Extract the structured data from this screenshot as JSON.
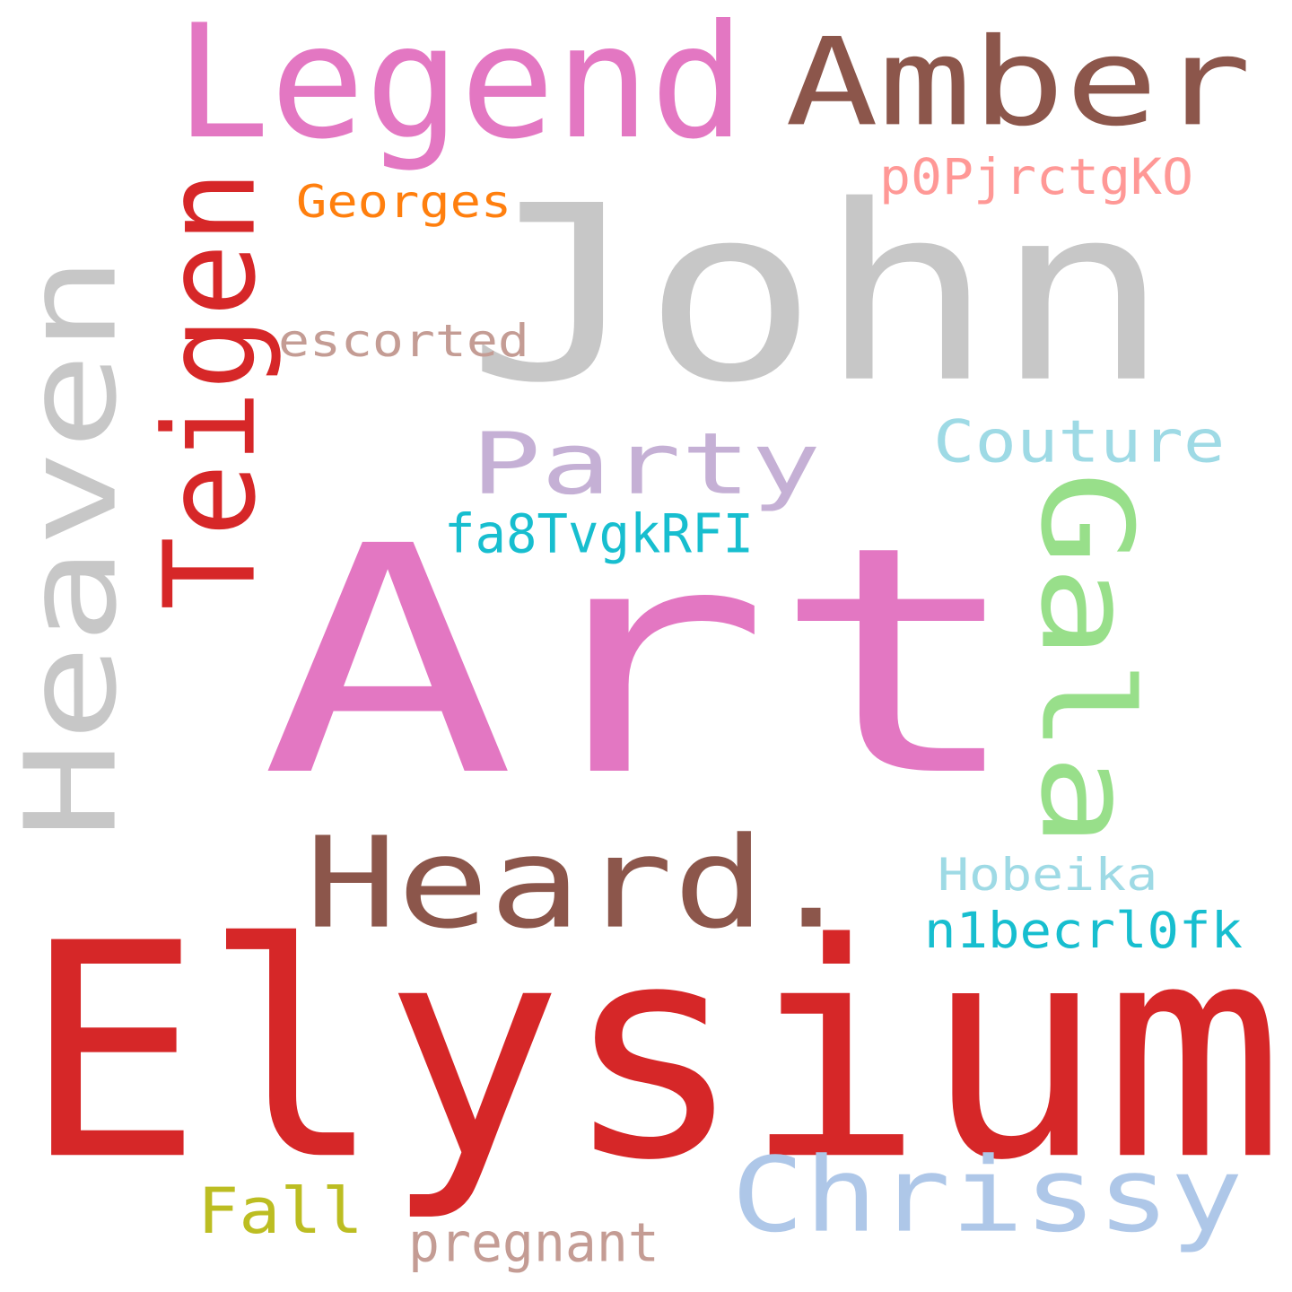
{
  "word_cloud": {
    "words": [
      {
        "id": "art",
        "text": "Art",
        "color": "#e377c2"
      },
      {
        "id": "elysium",
        "text": "Elysium",
        "color": "#d62728"
      },
      {
        "id": "john",
        "text": "John",
        "color": "#c7c7c7"
      },
      {
        "id": "heaven",
        "text": "Heaven",
        "color": "#c7c7c7"
      },
      {
        "id": "legend",
        "text": "Legend",
        "color": "#e377c2"
      },
      {
        "id": "amber",
        "text": "Amber",
        "color": "#8c564b"
      },
      {
        "id": "heard",
        "text": "Heard.",
        "color": "#8c564b"
      },
      {
        "id": "teigen",
        "text": "Teigen",
        "color": "#d62728"
      },
      {
        "id": "gala",
        "text": "Gala",
        "color": "#98df8a"
      },
      {
        "id": "chrissy",
        "text": "Chrissy",
        "color": "#aec7e8"
      },
      {
        "id": "party",
        "text": "Party",
        "color": "#c5b0d5"
      },
      {
        "id": "couture",
        "text": "Couture",
        "color": "#9edae5"
      },
      {
        "id": "fa8",
        "text": "fa8TvgkRFI",
        "color": "#17becf"
      },
      {
        "id": "escorted",
        "text": "escorted",
        "color": "#c49c94"
      },
      {
        "id": "georges",
        "text": "Georges",
        "color": "#ff7f0e"
      },
      {
        "id": "p0p",
        "text": "p0PjrctgKO",
        "color": "#ff9896"
      },
      {
        "id": "hobeika",
        "text": "Hobeika",
        "color": "#9edae5"
      },
      {
        "id": "n1b",
        "text": "n1becrl0fk",
        "color": "#17becf"
      },
      {
        "id": "fall",
        "text": "Fall",
        "color": "#bcbd22"
      },
      {
        "id": "pregnant",
        "text": "pregnant",
        "color": "#c49c94"
      }
    ]
  }
}
